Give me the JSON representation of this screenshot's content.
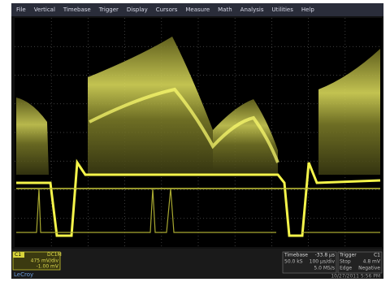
{
  "menu": [
    "File",
    "Vertical",
    "Timebase",
    "Trigger",
    "Display",
    "Cursors",
    "Measure",
    "Math",
    "Analysis",
    "Utilities",
    "Help"
  ],
  "channel": {
    "name": "C1",
    "coupling": "DC1M",
    "scale": "475 mV/div",
    "offset": "-1.00 mV"
  },
  "timebase": {
    "label": "Timebase",
    "delay": "-33.8 µs",
    "div": "100 µs/div",
    "samples": "50.0 kS",
    "rate": "5.0 MS/s"
  },
  "trigger": {
    "label": "Trigger",
    "source": "C1",
    "mode": "Stop",
    "level": "4.8 mV",
    "type": "Edge",
    "slope": "Negative"
  },
  "timestamp": "10/27/2011 5:56 PM",
  "brand": "LeCroy"
}
